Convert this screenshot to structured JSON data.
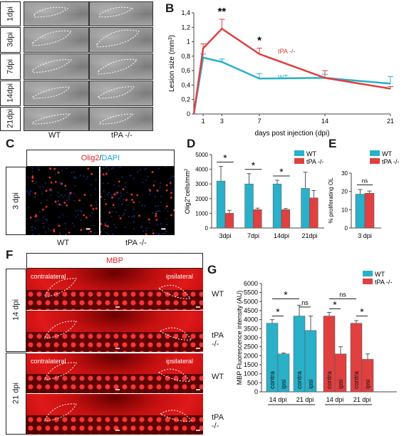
{
  "panel_labels": {
    "A": "A",
    "B": "B",
    "C": "C",
    "D": "D",
    "E": "E",
    "F": "F",
    "G": "G"
  },
  "panelA": {
    "rows": [
      "1dpi",
      "3dpi",
      "7dpi",
      "14dpi",
      "21dpi"
    ],
    "cols": [
      "WT",
      "tPA -/-"
    ]
  },
  "panelC": {
    "title_olig2": "Olig2",
    "title_sep": " / ",
    "title_dapi": "DAPI",
    "row": "3 dpi",
    "cols": [
      "WT",
      "tPA -/-"
    ],
    "colors": {
      "olig2": "#e02020",
      "dapi": "#1aa0d0"
    }
  },
  "panelF": {
    "title": "MBP",
    "groups": [
      "14 dpi",
      "21 dpi"
    ],
    "rows": [
      "WT",
      "tPA -/-",
      "WT",
      "tPA -/-"
    ],
    "contralateral": "contralateral",
    "ipsilateral": "ipsilateral"
  },
  "colors": {
    "wt": "#2ab0c8",
    "tpa": "#e04040"
  },
  "chart_data": [
    {
      "id": "B",
      "type": "line",
      "x": [
        0,
        1,
        3,
        7,
        14,
        21
      ],
      "xticks": [
        1,
        3,
        7,
        14,
        21
      ],
      "xlabel": "days post injection (dpi)",
      "ylabel": "Lesion size (mm3)",
      "ylim": [
        0,
        1.4
      ],
      "yticks": [
        "0",
        "0,2",
        "0,4",
        "0,6",
        "0,8",
        "1",
        "1,2",
        "1,4"
      ],
      "series": [
        {
          "name": "WT",
          "values": [
            0,
            0.78,
            0.72,
            0.49,
            0.5,
            0.42
          ],
          "err": [
            0,
            0.05,
            0.04,
            0.07,
            0.05,
            0.1
          ]
        },
        {
          "name": "tPA -/-",
          "values": [
            0,
            0.91,
            1.18,
            0.83,
            0.5,
            0.35
          ],
          "err": [
            0,
            0.06,
            0.13,
            0.08,
            0.1,
            0.03
          ]
        }
      ],
      "annotations": [
        {
          "x": 3,
          "text": "**"
        },
        {
          "x": 7,
          "text": "*"
        }
      ],
      "legend": [
        "WT",
        "tPA -/-"
      ]
    },
    {
      "id": "D",
      "type": "bar",
      "categories": [
        "3dpi",
        "7dpi",
        "14dpi",
        "21dpi"
      ],
      "series": [
        {
          "name": "WT",
          "values": [
            3200,
            3000,
            3000,
            2700
          ],
          "err": [
            1000,
            700,
            250,
            1100
          ]
        },
        {
          "name": "tPA -/-",
          "values": [
            1000,
            1250,
            1250,
            2050
          ],
          "err": [
            200,
            100,
            80,
            500
          ]
        }
      ],
      "ylabel": "Olig2+cells/mm2",
      "ylim": [
        0,
        5000
      ],
      "yticks": [
        "0",
        "1000",
        "2000",
        "3000",
        "4000",
        "5000"
      ],
      "significance": [
        "*",
        "*",
        "*",
        ""
      ],
      "legend": [
        "WT",
        "tPA -/-"
      ]
    },
    {
      "id": "E",
      "type": "bar",
      "categories": [
        "3 dpi"
      ],
      "series": [
        {
          "name": "WT",
          "values": [
            18.5
          ],
          "err": [
            2.5
          ]
        },
        {
          "name": "tPA -/-",
          "values": [
            19
          ],
          "err": [
            1.2
          ]
        }
      ],
      "ylabel": "% proliferating OL",
      "ylim": [
        0,
        30
      ],
      "yticks": [
        "0",
        "10",
        "20",
        "30"
      ],
      "significance": "ns",
      "legend": [
        "WT",
        "tPA -/-"
      ]
    },
    {
      "id": "G",
      "type": "bar",
      "bars": [
        {
          "group": "WT",
          "dpi": "14 dpi",
          "side": "contra",
          "value": 3800,
          "err": 200
        },
        {
          "group": "WT",
          "dpi": "14 dpi",
          "side": "ipsi",
          "value": 2100,
          "err": 50
        },
        {
          "group": "WT",
          "dpi": "21 dpi",
          "side": "contra",
          "value": 4200,
          "err": 600
        },
        {
          "group": "WT",
          "dpi": "21 dpi",
          "side": "ipsi",
          "value": 3400,
          "err": 800
        },
        {
          "group": "tPA -/-",
          "dpi": "14 dpi",
          "side": "contra",
          "value": 4200,
          "err": 200
        },
        {
          "group": "tPA -/-",
          "dpi": "14 dpi",
          "side": "ipsi",
          "value": 2100,
          "err": 400
        },
        {
          "group": "tPA -/-",
          "dpi": "21 dpi",
          "side": "contra",
          "value": 3800,
          "err": 150
        },
        {
          "group": "tPA -/-",
          "dpi": "21 dpi",
          "side": "ipsi",
          "value": 1800,
          "err": 300
        }
      ],
      "ylabel": "MBP Fluorescence intensity (AU)",
      "ylim": [
        0,
        6000
      ],
      "yticks": [
        "0",
        "500",
        "1000",
        "1500",
        "2000",
        "2500",
        "3000",
        "3500",
        "4000",
        "4500",
        "5000",
        "5500",
        "6000"
      ],
      "xticklabels": [
        "14 dpi",
        "21 dpi",
        "14 dpi",
        "21 dpi"
      ],
      "significance": [
        "*",
        "*",
        "ns",
        "*",
        "ns",
        "*"
      ],
      "legend": [
        "WT",
        "tPA -/-"
      ]
    }
  ]
}
